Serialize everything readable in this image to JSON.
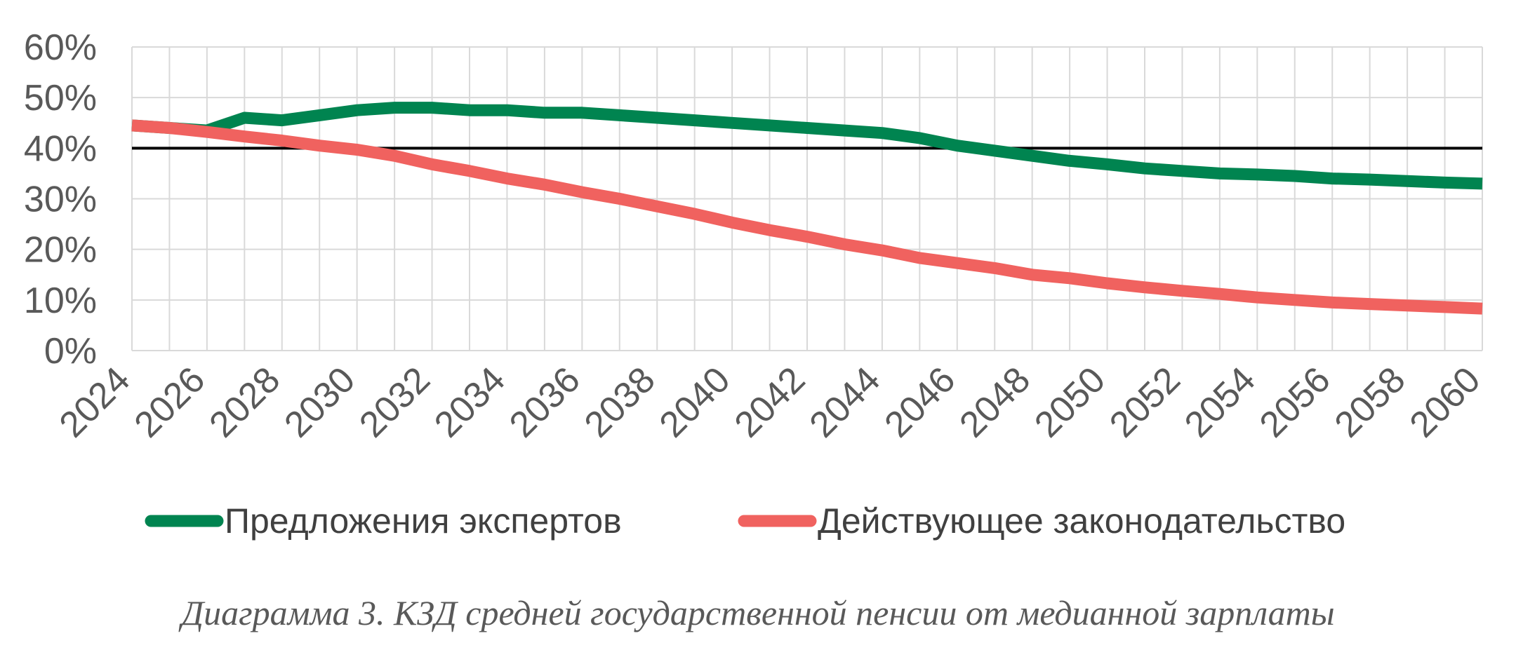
{
  "caption": "Диаграмма 3. КЗД средней государственной пенсии от медианной зарплаты",
  "chart_data": {
    "type": "line",
    "title": "",
    "xlabel": "",
    "ylabel": "",
    "x": [
      2024,
      2025,
      2026,
      2027,
      2028,
      2029,
      2030,
      2031,
      2032,
      2033,
      2034,
      2035,
      2036,
      2037,
      2038,
      2039,
      2040,
      2041,
      2042,
      2043,
      2044,
      2045,
      2046,
      2047,
      2048,
      2049,
      2050,
      2051,
      2052,
      2053,
      2054,
      2055,
      2056,
      2057,
      2058,
      2059,
      2060
    ],
    "x_tick_labels": [
      "2024",
      "2026",
      "2028",
      "2030",
      "2032",
      "2034",
      "2036",
      "2038",
      "2040",
      "2042",
      "2044",
      "2046",
      "2048",
      "2050",
      "2052",
      "2054",
      "2056",
      "2058",
      "2060"
    ],
    "ylim": [
      0,
      60
    ],
    "y_tick_labels": [
      "0%",
      "10%",
      "20%",
      "30%",
      "40%",
      "50%",
      "60%"
    ],
    "reference_line": 40,
    "grid": true,
    "legend_position": "bottom",
    "series": [
      {
        "name": "Предложения экспертов",
        "color": "#008450",
        "values": [
          44.5,
          44,
          43.5,
          46,
          45.5,
          46.5,
          47.5,
          48,
          48,
          47.5,
          47.5,
          47,
          47,
          46.5,
          46,
          45.5,
          45,
          44.5,
          44,
          43.5,
          43,
          42,
          40.5,
          39.5,
          38.5,
          37.5,
          36.8,
          36,
          35.5,
          35,
          34.8,
          34.5,
          34,
          33.8,
          33.5,
          33.2,
          33
        ]
      },
      {
        "name": "Действующее законодательство",
        "color": "#F0625F",
        "values": [
          44.5,
          44,
          43.2,
          42.3,
          41.5,
          40.5,
          39.7,
          38.5,
          36.8,
          35.5,
          34,
          32.8,
          31.3,
          30,
          28.5,
          27,
          25.3,
          23.8,
          22.5,
          21,
          19.8,
          18.3,
          17.3,
          16.3,
          15,
          14.3,
          13.3,
          12.5,
          11.8,
          11.2,
          10.5,
          10,
          9.5,
          9.2,
          8.9,
          8.6,
          8.3
        ]
      }
    ]
  }
}
